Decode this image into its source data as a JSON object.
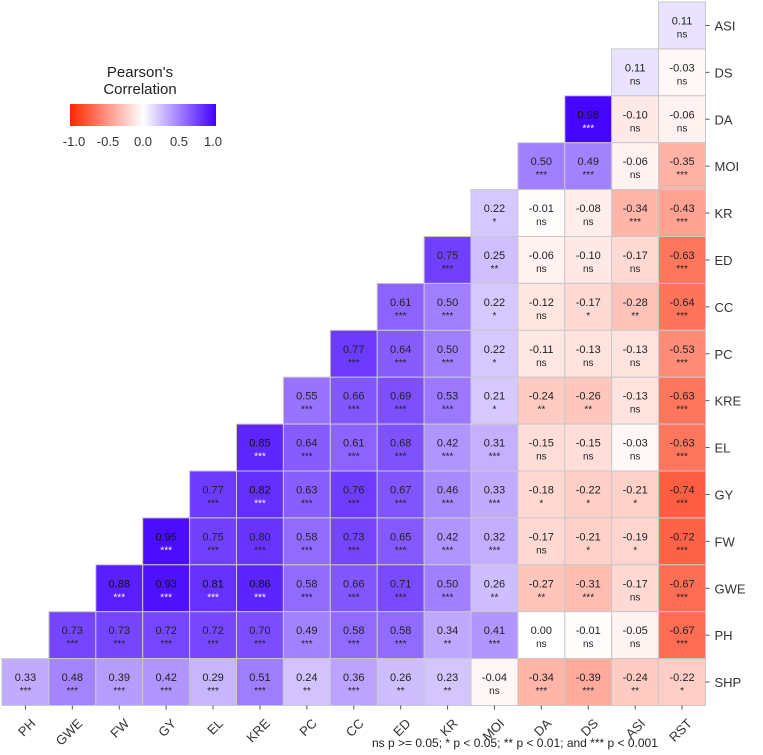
{
  "chart_data": {
    "type": "heatmap",
    "title": "",
    "legend": {
      "title_line1": "Pearson's",
      "title_line2": "Correlation",
      "ticks": [
        "-1.0",
        "-0.5",
        "0.0",
        "0.5",
        "1.0"
      ],
      "colors": {
        "low": "#ff2600",
        "mid": "#ffffff",
        "high": "#4200ff"
      },
      "placement": "top-left"
    },
    "x_labels": [
      "PH",
      "GWE",
      "FW",
      "GY",
      "EL",
      "KRE",
      "PC",
      "CC",
      "ED",
      "KR",
      "MOI",
      "DA",
      "DS",
      "ASI",
      "RST"
    ],
    "y_labels": [
      "ASI",
      "DS",
      "DA",
      "MOI",
      "KR",
      "ED",
      "CC",
      "PC",
      "KRE",
      "EL",
      "GY",
      "FW",
      "GWE",
      "PH",
      "SHP"
    ],
    "rows": [
      {
        "row": "ASI",
        "cells": [
          {
            "col": "RST",
            "value": "0.11",
            "sig": "ns"
          }
        ]
      },
      {
        "row": "DS",
        "cells": [
          {
            "col": "ASI",
            "value": "0.11",
            "sig": "ns"
          },
          {
            "col": "RST",
            "value": "-0.03",
            "sig": "ns"
          }
        ]
      },
      {
        "row": "DA",
        "cells": [
          {
            "col": "DS",
            "value": "0.98",
            "sig": "***"
          },
          {
            "col": "ASI",
            "value": "-0.10",
            "sig": "ns"
          },
          {
            "col": "RST",
            "value": "-0.06",
            "sig": "ns"
          }
        ]
      },
      {
        "row": "MOI",
        "cells": [
          {
            "col": "DA",
            "value": "0.50",
            "sig": "***"
          },
          {
            "col": "DS",
            "value": "0.49",
            "sig": "***"
          },
          {
            "col": "ASI",
            "value": "-0.06",
            "sig": "ns"
          },
          {
            "col": "RST",
            "value": "-0.35",
            "sig": "***"
          }
        ]
      },
      {
        "row": "KR",
        "cells": [
          {
            "col": "MOI",
            "value": "0.22",
            "sig": "*"
          },
          {
            "col": "DA",
            "value": "-0.01",
            "sig": "ns"
          },
          {
            "col": "DS",
            "value": "-0.08",
            "sig": "ns"
          },
          {
            "col": "ASI",
            "value": "-0.34",
            "sig": "***"
          },
          {
            "col": "RST",
            "value": "-0.43",
            "sig": "***"
          }
        ]
      },
      {
        "row": "ED",
        "cells": [
          {
            "col": "KR",
            "value": "0.75",
            "sig": "***"
          },
          {
            "col": "MOI",
            "value": "0.25",
            "sig": "**"
          },
          {
            "col": "DA",
            "value": "-0.06",
            "sig": "ns"
          },
          {
            "col": "DS",
            "value": "-0.10",
            "sig": "ns"
          },
          {
            "col": "ASI",
            "value": "-0.17",
            "sig": "ns"
          },
          {
            "col": "RST",
            "value": "-0.63",
            "sig": "***"
          }
        ]
      },
      {
        "row": "CC",
        "cells": [
          {
            "col": "ED",
            "value": "0.61",
            "sig": "***"
          },
          {
            "col": "KR",
            "value": "0.50",
            "sig": "***"
          },
          {
            "col": "MOI",
            "value": "0.22",
            "sig": "*"
          },
          {
            "col": "DA",
            "value": "-0.12",
            "sig": "ns"
          },
          {
            "col": "DS",
            "value": "-0.17",
            "sig": "*"
          },
          {
            "col": "ASI",
            "value": "-0.28",
            "sig": "**"
          },
          {
            "col": "RST",
            "value": "-0.64",
            "sig": "***"
          }
        ]
      },
      {
        "row": "PC",
        "cells": [
          {
            "col": "CC",
            "value": "0.77",
            "sig": "***"
          },
          {
            "col": "ED",
            "value": "0.64",
            "sig": "***"
          },
          {
            "col": "KR",
            "value": "0.50",
            "sig": "***"
          },
          {
            "col": "MOI",
            "value": "0.22",
            "sig": "*"
          },
          {
            "col": "DA",
            "value": "-0.11",
            "sig": "ns"
          },
          {
            "col": "DS",
            "value": "-0.13",
            "sig": "ns"
          },
          {
            "col": "ASI",
            "value": "-0.13",
            "sig": "ns"
          },
          {
            "col": "RST",
            "value": "-0.53",
            "sig": "***"
          }
        ]
      },
      {
        "row": "KRE",
        "cells": [
          {
            "col": "PC",
            "value": "0.55",
            "sig": "***"
          },
          {
            "col": "CC",
            "value": "0.66",
            "sig": "***"
          },
          {
            "col": "ED",
            "value": "0.69",
            "sig": "***"
          },
          {
            "col": "KR",
            "value": "0.53",
            "sig": "***"
          },
          {
            "col": "MOI",
            "value": "0.21",
            "sig": "*"
          },
          {
            "col": "DA",
            "value": "-0.24",
            "sig": "**"
          },
          {
            "col": "DS",
            "value": "-0.26",
            "sig": "**"
          },
          {
            "col": "ASI",
            "value": "-0.13",
            "sig": "ns"
          },
          {
            "col": "RST",
            "value": "-0.63",
            "sig": "***"
          }
        ]
      },
      {
        "row": "EL",
        "cells": [
          {
            "col": "KRE",
            "value": "0.85",
            "sig": "***"
          },
          {
            "col": "PC",
            "value": "0.64",
            "sig": "***"
          },
          {
            "col": "CC",
            "value": "0.61",
            "sig": "***"
          },
          {
            "col": "ED",
            "value": "0.68",
            "sig": "***"
          },
          {
            "col": "KR",
            "value": "0.42",
            "sig": "***"
          },
          {
            "col": "MOI",
            "value": "0.31",
            "sig": "***"
          },
          {
            "col": "DA",
            "value": "-0.15",
            "sig": "ns"
          },
          {
            "col": "DS",
            "value": "-0.15",
            "sig": "ns"
          },
          {
            "col": "ASI",
            "value": "-0.03",
            "sig": "ns"
          },
          {
            "col": "RST",
            "value": "-0.63",
            "sig": "***"
          }
        ]
      },
      {
        "row": "GY",
        "cells": [
          {
            "col": "EL",
            "value": "0.77",
            "sig": "***"
          },
          {
            "col": "KRE",
            "value": "0.82",
            "sig": "***"
          },
          {
            "col": "PC",
            "value": "0.63",
            "sig": "***"
          },
          {
            "col": "CC",
            "value": "0.76",
            "sig": "***"
          },
          {
            "col": "ED",
            "value": "0.67",
            "sig": "***"
          },
          {
            "col": "KR",
            "value": "0.46",
            "sig": "***"
          },
          {
            "col": "MOI",
            "value": "0.33",
            "sig": "***"
          },
          {
            "col": "DA",
            "value": "-0.18",
            "sig": "*"
          },
          {
            "col": "DS",
            "value": "-0.22",
            "sig": "*"
          },
          {
            "col": "ASI",
            "value": "-0.21",
            "sig": "*"
          },
          {
            "col": "RST",
            "value": "-0.74",
            "sig": "***"
          }
        ]
      },
      {
        "row": "FW",
        "cells": [
          {
            "col": "GY",
            "value": "0.95",
            "sig": "***"
          },
          {
            "col": "EL",
            "value": "0.75",
            "sig": "***"
          },
          {
            "col": "KRE",
            "value": "0.80",
            "sig": "***"
          },
          {
            "col": "PC",
            "value": "0.58",
            "sig": "***"
          },
          {
            "col": "CC",
            "value": "0.73",
            "sig": "***"
          },
          {
            "col": "ED",
            "value": "0.65",
            "sig": "***"
          },
          {
            "col": "KR",
            "value": "0.42",
            "sig": "***"
          },
          {
            "col": "MOI",
            "value": "0.32",
            "sig": "***"
          },
          {
            "col": "DA",
            "value": "-0.17",
            "sig": "ns"
          },
          {
            "col": "DS",
            "value": "-0.21",
            "sig": "*"
          },
          {
            "col": "ASI",
            "value": "-0.19",
            "sig": "*"
          },
          {
            "col": "RST",
            "value": "-0.72",
            "sig": "***"
          }
        ]
      },
      {
        "row": "GWE",
        "cells": [
          {
            "col": "FW",
            "value": "0.88",
            "sig": "***"
          },
          {
            "col": "GY",
            "value": "0.93",
            "sig": "***"
          },
          {
            "col": "EL",
            "value": "0.81",
            "sig": "***"
          },
          {
            "col": "KRE",
            "value": "0.86",
            "sig": "***"
          },
          {
            "col": "PC",
            "value": "0.58",
            "sig": "***"
          },
          {
            "col": "CC",
            "value": "0.66",
            "sig": "***"
          },
          {
            "col": "ED",
            "value": "0.71",
            "sig": "***"
          },
          {
            "col": "KR",
            "value": "0.50",
            "sig": "***"
          },
          {
            "col": "MOI",
            "value": "0.26",
            "sig": "**"
          },
          {
            "col": "DA",
            "value": "-0.27",
            "sig": "**"
          },
          {
            "col": "DS",
            "value": "-0.31",
            "sig": "***"
          },
          {
            "col": "ASI",
            "value": "-0.17",
            "sig": "ns"
          },
          {
            "col": "RST",
            "value": "-0.67",
            "sig": "***"
          }
        ]
      },
      {
        "row": "PH",
        "cells": [
          {
            "col": "GWE",
            "value": "0.73",
            "sig": "***"
          },
          {
            "col": "FW",
            "value": "0.73",
            "sig": "***"
          },
          {
            "col": "GY",
            "value": "0.72",
            "sig": "***"
          },
          {
            "col": "EL",
            "value": "0.72",
            "sig": "***"
          },
          {
            "col": "KRE",
            "value": "0.70",
            "sig": "***"
          },
          {
            "col": "PC",
            "value": "0.49",
            "sig": "***"
          },
          {
            "col": "CC",
            "value": "0.58",
            "sig": "***"
          },
          {
            "col": "ED",
            "value": "0.58",
            "sig": "***"
          },
          {
            "col": "KR",
            "value": "0.34",
            "sig": "**"
          },
          {
            "col": "MOI",
            "value": "0.41",
            "sig": "***"
          },
          {
            "col": "DA",
            "value": "0.00",
            "sig": "ns"
          },
          {
            "col": "DS",
            "value": "-0.01",
            "sig": "ns"
          },
          {
            "col": "ASI",
            "value": "-0.05",
            "sig": "ns"
          },
          {
            "col": "RST",
            "value": "-0.67",
            "sig": "***"
          }
        ]
      },
      {
        "row": "SHP",
        "cells": [
          {
            "col": "PH",
            "value": "0.33",
            "sig": "***"
          },
          {
            "col": "GWE",
            "value": "0.48",
            "sig": "***"
          },
          {
            "col": "FW",
            "value": "0.39",
            "sig": "***"
          },
          {
            "col": "GY",
            "value": "0.42",
            "sig": "***"
          },
          {
            "col": "EL",
            "value": "0.29",
            "sig": "***"
          },
          {
            "col": "KRE",
            "value": "0.51",
            "sig": "***"
          },
          {
            "col": "PC",
            "value": "0.24",
            "sig": "**"
          },
          {
            "col": "CC",
            "value": "0.36",
            "sig": "***"
          },
          {
            "col": "ED",
            "value": "0.26",
            "sig": "**"
          },
          {
            "col": "KR",
            "value": "0.23",
            "sig": "**"
          },
          {
            "col": "MOI",
            "value": "-0.04",
            "sig": "ns"
          },
          {
            "col": "DA",
            "value": "-0.34",
            "sig": "***"
          },
          {
            "col": "DS",
            "value": "-0.39",
            "sig": "***"
          },
          {
            "col": "ASI",
            "value": "-0.24",
            "sig": "**"
          },
          {
            "col": "RST",
            "value": "-0.22",
            "sig": "*"
          }
        ]
      }
    ],
    "footnote": "ns p >= 0.05; * p < 0.05; ** p < 0.01; and *** p < 0.001"
  }
}
